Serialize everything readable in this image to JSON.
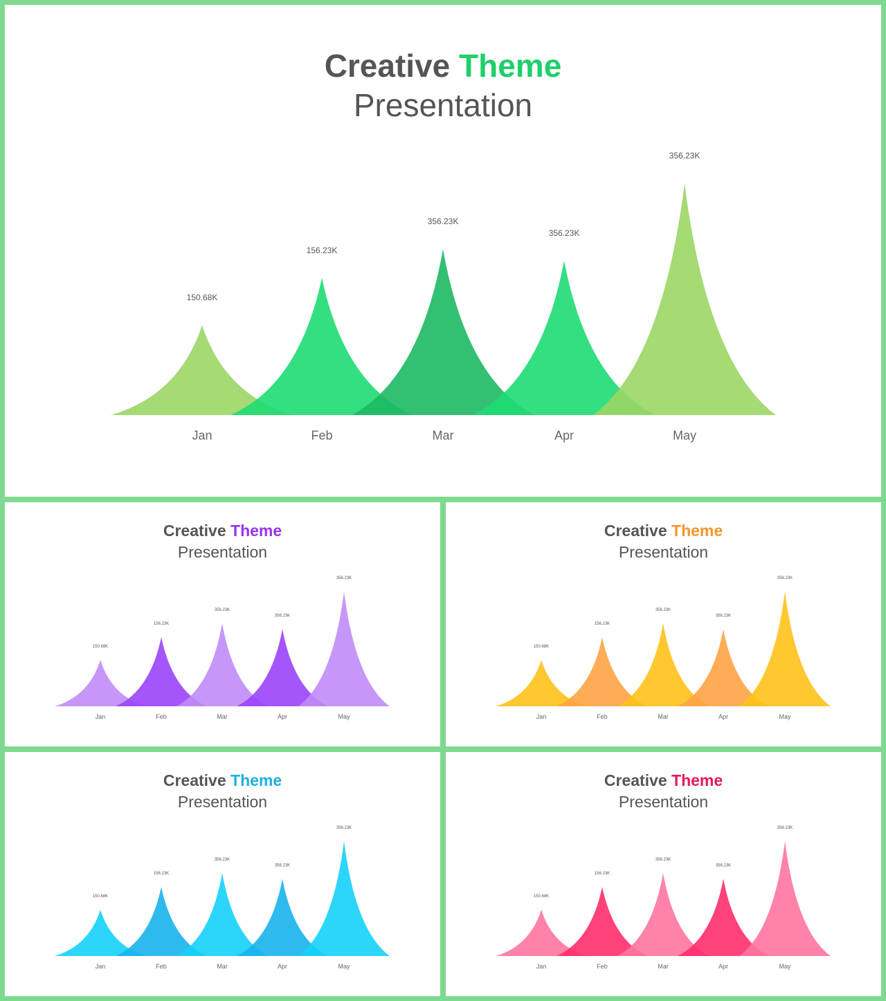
{
  "slides": [
    {
      "id": "main",
      "title_word1": "Creative",
      "title_word2": "Theme",
      "subtitle": "Presentation",
      "accent": "#1fcf6a"
    },
    {
      "id": "purple",
      "title_word1": "Creative",
      "title_word2": "Theme",
      "subtitle": "Presentation",
      "accent": "#9933ee"
    },
    {
      "id": "orange",
      "title_word1": "Creative",
      "title_word2": "Theme",
      "subtitle": "Presentation",
      "accent": "#f5962a"
    },
    {
      "id": "blue",
      "title_word1": "Creative",
      "title_word2": "Theme",
      "subtitle": "Presentation",
      "accent": "#1ab0e0"
    },
    {
      "id": "pink",
      "title_word1": "Creative",
      "title_word2": "Theme",
      "subtitle": "Presentation",
      "accent": "#e8185a"
    }
  ],
  "chart_data": [
    {
      "type": "area",
      "categories": [
        "Jan",
        "Feb",
        "Mar",
        "Apr",
        "May"
      ],
      "values": [
        150.68,
        156.23,
        356.23,
        356.23,
        356.23
      ],
      "data_labels": [
        "150.68K",
        "156.23K",
        "356.23K",
        "356.23K",
        "356.23K"
      ],
      "colors": [
        "#9bd665",
        "#1edb73",
        "#1eb964",
        "#1edb73",
        "#9bd665"
      ]
    },
    {
      "type": "area",
      "categories": [
        "Jan",
        "Feb",
        "Mar",
        "Apr",
        "May"
      ],
      "values": [
        150.68,
        156.23,
        356.23,
        356.23,
        356.23
      ],
      "data_labels": [
        "150.68K",
        "156.23K",
        "356.23K",
        "356.23K",
        "356.23K"
      ],
      "colors": [
        "#c08cf7",
        "#9a44f9",
        "#c08cf7",
        "#9a44f9",
        "#c08cf7"
      ]
    },
    {
      "type": "area",
      "categories": [
        "Jan",
        "Feb",
        "Mar",
        "Apr",
        "May"
      ],
      "values": [
        150.68,
        156.23,
        356.23,
        356.23,
        356.23
      ],
      "data_labels": [
        "150.68K",
        "156.23K",
        "356.23K",
        "356.23K",
        "356.23K"
      ],
      "colors": [
        "#ffc21a",
        "#ffa344",
        "#ffc21a",
        "#ffa344",
        "#ffc21a"
      ]
    },
    {
      "type": "area",
      "categories": [
        "Jan",
        "Feb",
        "Mar",
        "Apr",
        "May"
      ],
      "values": [
        150.68,
        156.23,
        356.23,
        356.23,
        356.23
      ],
      "data_labels": [
        "150.68K",
        "156.23K",
        "356.23K",
        "356.23K",
        "356.23K"
      ],
      "colors": [
        "#14d2fa",
        "#18b2ec",
        "#14d2fa",
        "#18b2ec",
        "#14d2fa"
      ]
    },
    {
      "type": "area",
      "categories": [
        "Jan",
        "Feb",
        "Mar",
        "Apr",
        "May"
      ],
      "values": [
        150.68,
        156.23,
        356.23,
        356.23,
        356.23
      ],
      "data_labels": [
        "150.68K",
        "156.23K",
        "356.23K",
        "356.23K",
        "356.23K"
      ],
      "colors": [
        "#ff75a0",
        "#ff2e6c",
        "#ff75a0",
        "#ff2e6c",
        "#ff75a0"
      ]
    }
  ]
}
